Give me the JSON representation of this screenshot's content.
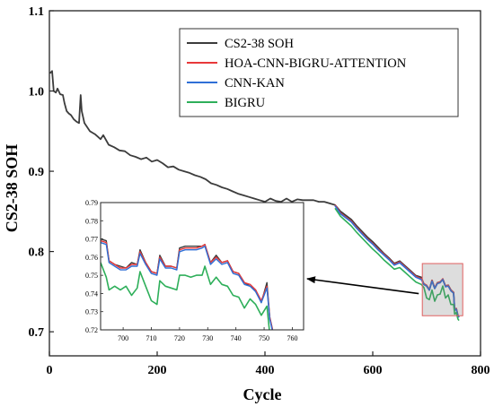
{
  "chart_data": [
    {
      "type": "line",
      "xlabel": "Cycle",
      "ylabel": "CS2-38 SOH",
      "xlim": [
        0,
        800
      ],
      "ylim": [
        0.67,
        1.1
      ],
      "x_ticks": [
        "0",
        "200",
        "400",
        "600",
        "800"
      ],
      "y_ticks": [
        "0.7",
        "0.8",
        "0.9",
        "1.0",
        "1.1"
      ],
      "legend_position": "top-right",
      "highlight_box": {
        "x_range": [
          692,
          767
        ],
        "y_range": [
          0.72,
          0.785
        ]
      },
      "series": [
        {
          "name": "CS2-38 SOH",
          "color": "#3c3c3c",
          "x": [
            1,
            5,
            8,
            12,
            15,
            20,
            25,
            28,
            32,
            36,
            40,
            45,
            50,
            55,
            58,
            60,
            65,
            70,
            75,
            80,
            85,
            90,
            95,
            100,
            110,
            120,
            130,
            140,
            150,
            160,
            170,
            180,
            190,
            200,
            210,
            220,
            230,
            240,
            250,
            260,
            270,
            280,
            290,
            300,
            310,
            320,
            330,
            340,
            350,
            360,
            370,
            380,
            390,
            400,
            410,
            420,
            430,
            440,
            450,
            460,
            470,
            480,
            490,
            500,
            510,
            520,
            530,
            540,
            550,
            560,
            570,
            580,
            590,
            600,
            610,
            620,
            630,
            640,
            650,
            660,
            670,
            680,
            690,
            695,
            700,
            705,
            710,
            715,
            720,
            725,
            730,
            735,
            740,
            745,
            750,
            752,
            755,
            758,
            760
          ],
          "y": [
            1.022,
            1.025,
            1.0,
            0.998,
            1.003,
            0.996,
            0.995,
            0.985,
            0.975,
            0.972,
            0.97,
            0.965,
            0.962,
            0.96,
            0.995,
            0.975,
            0.96,
            0.955,
            0.95,
            0.948,
            0.946,
            0.943,
            0.94,
            0.945,
            0.933,
            0.93,
            0.926,
            0.925,
            0.92,
            0.918,
            0.915,
            0.917,
            0.912,
            0.914,
            0.91,
            0.905,
            0.906,
            0.902,
            0.9,
            0.898,
            0.895,
            0.893,
            0.89,
            0.885,
            0.883,
            0.88,
            0.878,
            0.875,
            0.872,
            0.87,
            0.868,
            0.866,
            0.864,
            0.862,
            0.866,
            0.863,
            0.862,
            0.866,
            0.862,
            0.865,
            0.864,
            0.864,
            0.864,
            0.862,
            0.862,
            0.86,
            0.858,
            0.85,
            0.845,
            0.84,
            0.832,
            0.825,
            0.818,
            0.812,
            0.805,
            0.798,
            0.792,
            0.785,
            0.788,
            0.782,
            0.776,
            0.77,
            0.768,
            0.759,
            0.757,
            0.752,
            0.764,
            0.754,
            0.761,
            0.762,
            0.765,
            0.757,
            0.758,
            0.752,
            0.749,
            0.727,
            0.729,
            0.72,
            0.718
          ]
        },
        {
          "name": "HOA-CNN-BIGRU-ATTENTION",
          "color": "#e8383a",
          "x": [
            530,
            540,
            550,
            560,
            570,
            580,
            590,
            600,
            610,
            620,
            630,
            640,
            650,
            660,
            670,
            680,
            690,
            695,
            700,
            705,
            710,
            715,
            720,
            725,
            730,
            735,
            740,
            745,
            750,
            752,
            755,
            758,
            760
          ],
          "y": [
            0.858,
            0.848,
            0.843,
            0.838,
            0.83,
            0.823,
            0.816,
            0.81,
            0.803,
            0.797,
            0.791,
            0.784,
            0.787,
            0.781,
            0.775,
            0.769,
            0.766,
            0.76,
            0.758,
            0.753,
            0.764,
            0.755,
            0.761,
            0.762,
            0.766,
            0.757,
            0.758,
            0.752,
            0.749,
            0.728,
            0.729,
            0.721,
            0.719
          ]
        },
        {
          "name": "CNN-KAN",
          "color": "#2f6fd6",
          "x": [
            530,
            540,
            550,
            560,
            570,
            580,
            590,
            600,
            610,
            620,
            630,
            640,
            650,
            660,
            670,
            680,
            690,
            695,
            700,
            705,
            710,
            715,
            720,
            725,
            730,
            735,
            740,
            745,
            750,
            752,
            755,
            758,
            760
          ],
          "y": [
            0.857,
            0.847,
            0.842,
            0.837,
            0.829,
            0.822,
            0.815,
            0.809,
            0.802,
            0.796,
            0.79,
            0.783,
            0.786,
            0.78,
            0.774,
            0.768,
            0.765,
            0.759,
            0.757,
            0.752,
            0.763,
            0.754,
            0.76,
            0.761,
            0.765,
            0.756,
            0.757,
            0.751,
            0.748,
            0.727,
            0.728,
            0.72,
            0.718
          ]
        },
        {
          "name": "BIGRU",
          "color": "#2eaf5a",
          "x": [
            530,
            540,
            550,
            560,
            570,
            580,
            590,
            600,
            610,
            620,
            630,
            640,
            650,
            660,
            670,
            680,
            690,
            695,
            700,
            705,
            710,
            715,
            720,
            725,
            730,
            735,
            740,
            745,
            750,
            752,
            755,
            758,
            760
          ],
          "y": [
            0.854,
            0.844,
            0.838,
            0.832,
            0.824,
            0.817,
            0.81,
            0.803,
            0.797,
            0.79,
            0.784,
            0.778,
            0.78,
            0.774,
            0.768,
            0.762,
            0.759,
            0.755,
            0.742,
            0.74,
            0.752,
            0.738,
            0.746,
            0.747,
            0.757,
            0.742,
            0.746,
            0.734,
            0.734,
            0.722,
            0.724,
            0.716,
            0.714
          ]
        }
      ]
    },
    {
      "type": "line",
      "role": "inset",
      "xlim": [
        692,
        764
      ],
      "ylim": [
        0.72,
        0.79
      ],
      "x_ticks": [
        "700",
        "710",
        "720",
        "730",
        "740",
        "750",
        "760"
      ],
      "y_ticks": [
        "0.72",
        "0.73",
        "0.74",
        "0.75",
        "0.76",
        "0.77",
        "0.78",
        "0.79"
      ],
      "series": [
        {
          "name": "CS2-38 SOH",
          "color": "#3c3c3c",
          "x": [
            692,
            694,
            695,
            697,
            699,
            701,
            703,
            705,
            706,
            708,
            710,
            712,
            713,
            715,
            717,
            719,
            720,
            722,
            724,
            726,
            728,
            729,
            731,
            733,
            735,
            737,
            739,
            741,
            743,
            745,
            747,
            749,
            751,
            752,
            753
          ],
          "y": [
            0.77,
            0.769,
            0.758,
            0.756,
            0.755,
            0.754,
            0.757,
            0.756,
            0.764,
            0.757,
            0.752,
            0.751,
            0.761,
            0.755,
            0.755,
            0.754,
            0.765,
            0.766,
            0.766,
            0.766,
            0.766,
            0.767,
            0.757,
            0.761,
            0.757,
            0.758,
            0.752,
            0.751,
            0.746,
            0.744,
            0.742,
            0.735,
            0.746,
            0.727,
            0.72
          ]
        },
        {
          "name": "HOA-CNN-BIGRU-ATTENTION",
          "color": "#e8383a",
          "x": [
            692,
            694,
            695,
            697,
            699,
            701,
            703,
            705,
            706,
            708,
            710,
            712,
            713,
            715,
            717,
            719,
            720,
            722,
            724,
            726,
            728,
            729,
            731,
            733,
            735,
            737,
            739,
            741,
            743,
            745,
            747,
            749,
            751,
            752,
            753
          ],
          "y": [
            0.769,
            0.768,
            0.758,
            0.756,
            0.754,
            0.754,
            0.756,
            0.756,
            0.763,
            0.757,
            0.752,
            0.751,
            0.76,
            0.755,
            0.755,
            0.754,
            0.764,
            0.765,
            0.765,
            0.765,
            0.766,
            0.767,
            0.757,
            0.76,
            0.757,
            0.758,
            0.752,
            0.751,
            0.746,
            0.745,
            0.742,
            0.736,
            0.744,
            0.727,
            0.72
          ]
        },
        {
          "name": "CNN-KAN",
          "color": "#2f6fd6",
          "x": [
            692,
            694,
            695,
            697,
            699,
            701,
            703,
            705,
            706,
            708,
            710,
            712,
            713,
            715,
            717,
            719,
            720,
            722,
            724,
            726,
            728,
            729,
            731,
            733,
            735,
            737,
            739,
            741,
            743,
            745,
            747,
            749,
            751,
            752,
            753
          ],
          "y": [
            0.768,
            0.767,
            0.757,
            0.755,
            0.753,
            0.753,
            0.755,
            0.755,
            0.762,
            0.756,
            0.751,
            0.75,
            0.759,
            0.754,
            0.754,
            0.753,
            0.763,
            0.764,
            0.764,
            0.764,
            0.765,
            0.766,
            0.756,
            0.759,
            0.756,
            0.757,
            0.751,
            0.75,
            0.745,
            0.744,
            0.741,
            0.735,
            0.743,
            0.726,
            0.719
          ]
        },
        {
          "name": "BIGRU",
          "color": "#2eaf5a",
          "x": [
            692,
            694,
            695,
            697,
            699,
            701,
            703,
            705,
            706,
            708,
            710,
            712,
            713,
            715,
            717,
            719,
            720,
            722,
            724,
            726,
            728,
            729,
            731,
            733,
            735,
            737,
            739,
            741,
            743,
            745,
            747,
            749,
            751,
            752,
            753
          ],
          "y": [
            0.757,
            0.749,
            0.742,
            0.744,
            0.742,
            0.744,
            0.739,
            0.743,
            0.752,
            0.744,
            0.736,
            0.734,
            0.747,
            0.744,
            0.743,
            0.742,
            0.75,
            0.75,
            0.749,
            0.75,
            0.75,
            0.755,
            0.745,
            0.749,
            0.745,
            0.744,
            0.739,
            0.738,
            0.732,
            0.737,
            0.734,
            0.728,
            0.733,
            0.718,
            0.712
          ]
        }
      ]
    }
  ]
}
